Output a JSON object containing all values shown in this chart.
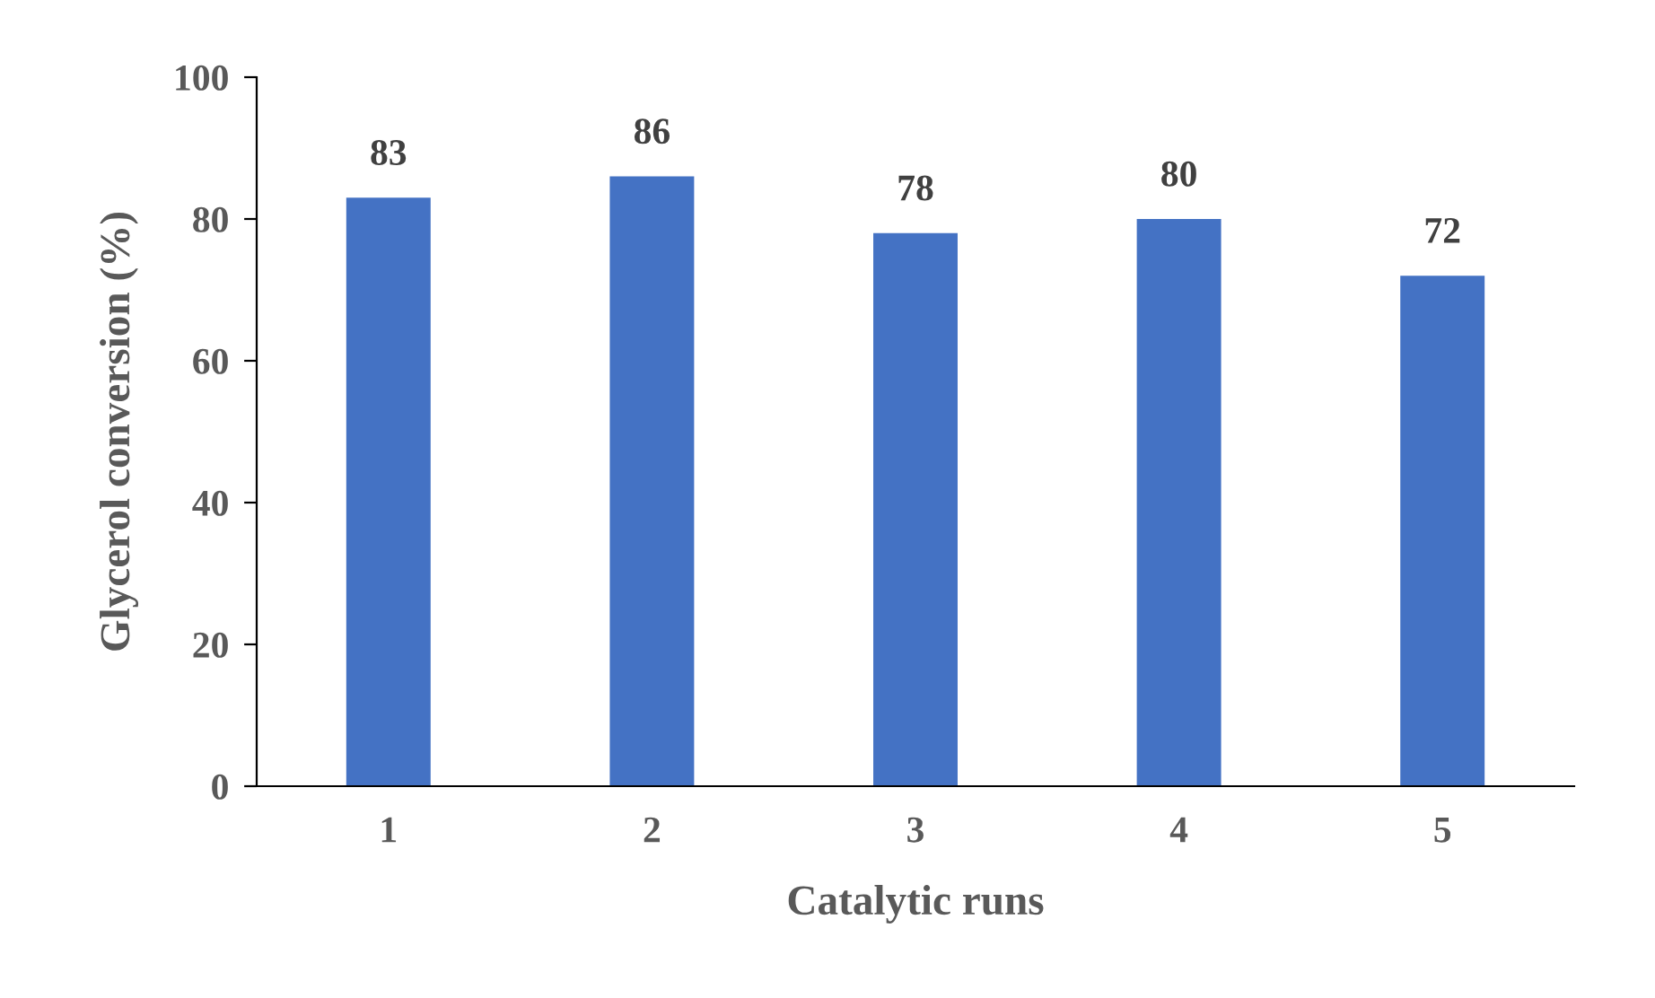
{
  "chart_data": {
    "type": "bar",
    "xlabel": "Catalytic runs",
    "ylabel": "Glycerol conversion (%)",
    "categories": [
      "1",
      "2",
      "3",
      "4",
      "5"
    ],
    "values": [
      83,
      86,
      78,
      80,
      72
    ],
    "color": "#4472c4",
    "ylim": [
      0,
      100
    ],
    "yticks": [
      0,
      20,
      40,
      60,
      80,
      100
    ],
    "data_labels": true,
    "grid": false,
    "legend": false
  }
}
